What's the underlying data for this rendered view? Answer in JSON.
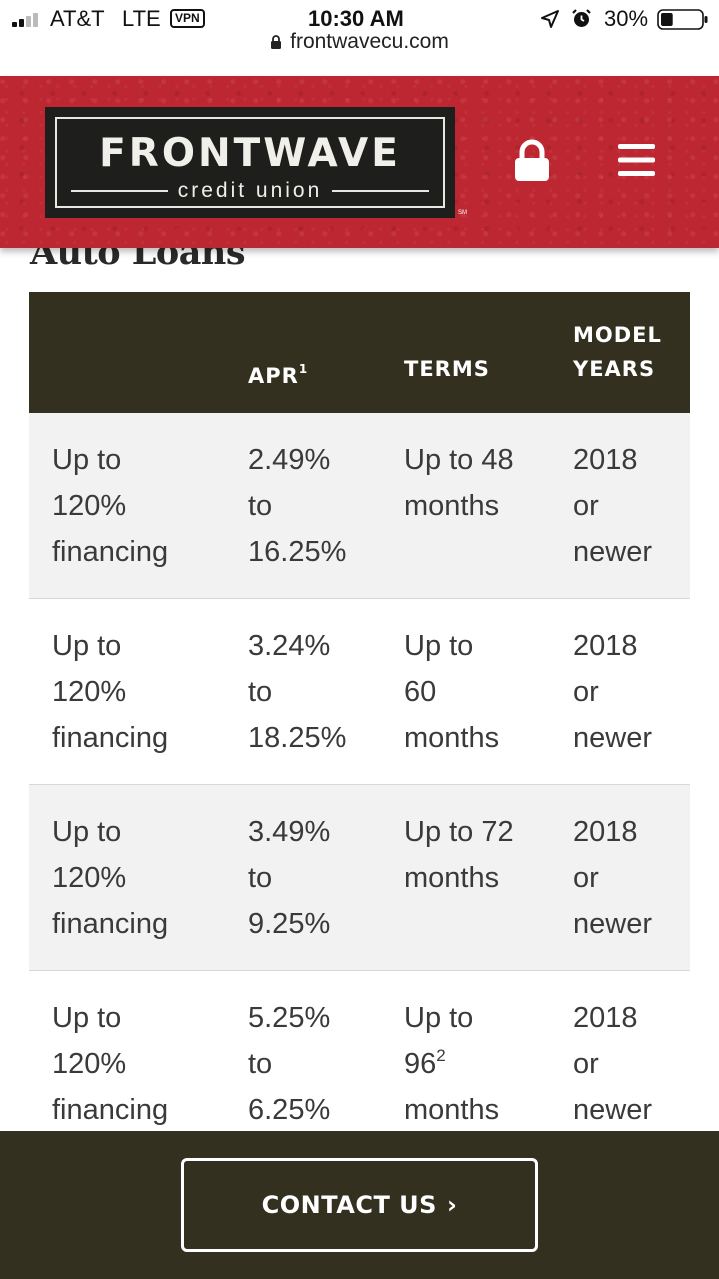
{
  "status_bar": {
    "carrier": "AT&T",
    "network": "LTE",
    "vpn": "VPN",
    "time": "10:30 AM",
    "battery": "30%",
    "battery_level": 0.3,
    "url": "frontwavecu.com"
  },
  "header": {
    "logo_word": "FRONTWAVE",
    "logo_sub": "credit union",
    "logo_sm": "SM",
    "lock_icon": "lock-icon",
    "menu_icon": "hamburger-menu-icon",
    "brand_color": "#bd2732"
  },
  "page": {
    "title": "Auto Loans"
  },
  "table": {
    "headers": {
      "col1": "",
      "apr": "APR",
      "apr_sup": "1",
      "terms": "TERMS",
      "model_years": "MODEL\nYEARS"
    },
    "rows": [
      {
        "financing": "Up to\n120%\nfinancing",
        "apr": "2.49%\nto\n16.25%",
        "terms": "Up to 48\nmonths",
        "terms_sup": "",
        "terms_after": "",
        "years": "2018\nor\nnewer"
      },
      {
        "financing": "Up to\n120%\nfinancing",
        "apr": "3.24%\nto\n18.25%",
        "terms": "Up to\n60\nmonths",
        "terms_sup": "",
        "terms_after": "",
        "years": "2018\nor\nnewer"
      },
      {
        "financing": "Up to\n120%\nfinancing",
        "apr": "3.49%\nto\n9.25%",
        "terms": "Up to 72\nmonths",
        "terms_sup": "",
        "terms_after": "",
        "years": "2018\nor\nnewer"
      },
      {
        "financing": "Up to\n120%\nfinancing",
        "apr": "5.25%\nto\n6.25%",
        "terms": "Up to\n96",
        "terms_sup": "2",
        "terms_after": "\nmonths",
        "years": "2018\nor\nnewer"
      }
    ],
    "header_color": "#33301f"
  },
  "footer": {
    "contact_label": "CONTACT US",
    "contact_chevron": "›"
  }
}
